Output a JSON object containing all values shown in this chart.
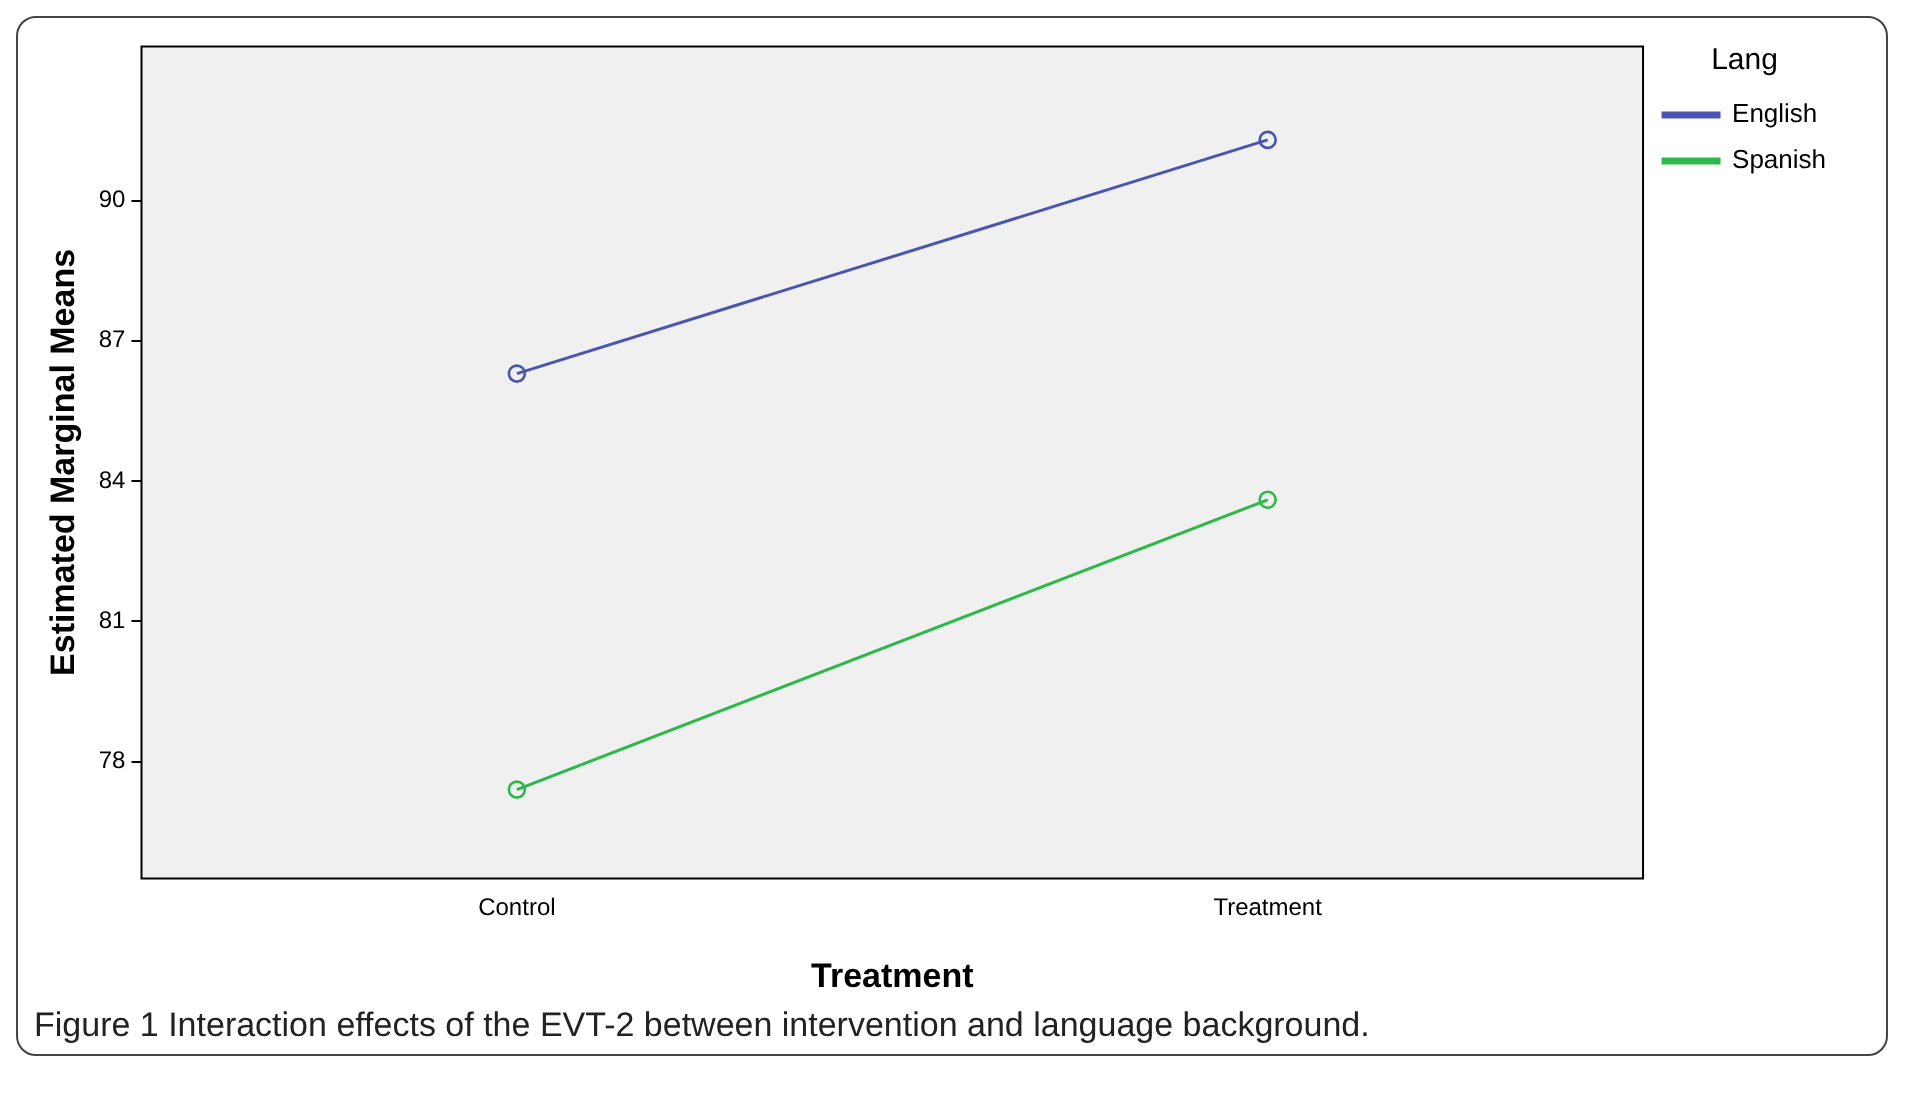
{
  "chart_data": {
    "type": "line",
    "xlabel": "Treatment",
    "ylabel": "Estimated Marginal Means",
    "legend_title": "Lang",
    "legend": "top right",
    "marker": "circle",
    "categories": [
      "Control",
      "Treatment"
    ],
    "series": [
      {
        "name": "English",
        "color": "#4a55b0",
        "values": [
          86.3,
          91.3
        ]
      },
      {
        "name": "Spanish",
        "color": "#2eb84a",
        "values": [
          77.4,
          83.6
        ]
      }
    ],
    "ylim": [
      75.5,
      93.3
    ],
    "yticks": [
      78,
      81,
      84,
      87,
      90
    ],
    "annotations": [
      "Figure 1 Interaction effects of the EVT-2 between intervention and language background."
    ]
  }
}
